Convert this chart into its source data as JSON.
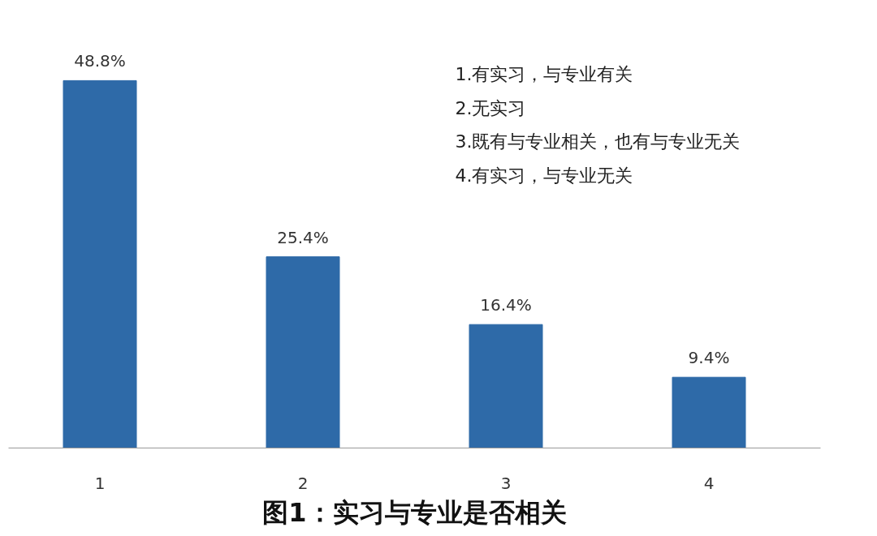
{
  "chart_data": {
    "type": "bar",
    "title": "图1：实习与专业是否相关",
    "categories": [
      "1",
      "2",
      "3",
      "4"
    ],
    "values": [
      48.8,
      25.4,
      16.4,
      9.4
    ],
    "value_labels": [
      "48.8%",
      "25.4%",
      "16.4%",
      "9.4%"
    ],
    "color": "#2e6aa8",
    "annotations": [
      "1.有实习，与专业有关",
      "2.无实习",
      "3.既有与专业相关，也有与专业无关",
      "4.有实习，与专业无关"
    ]
  }
}
